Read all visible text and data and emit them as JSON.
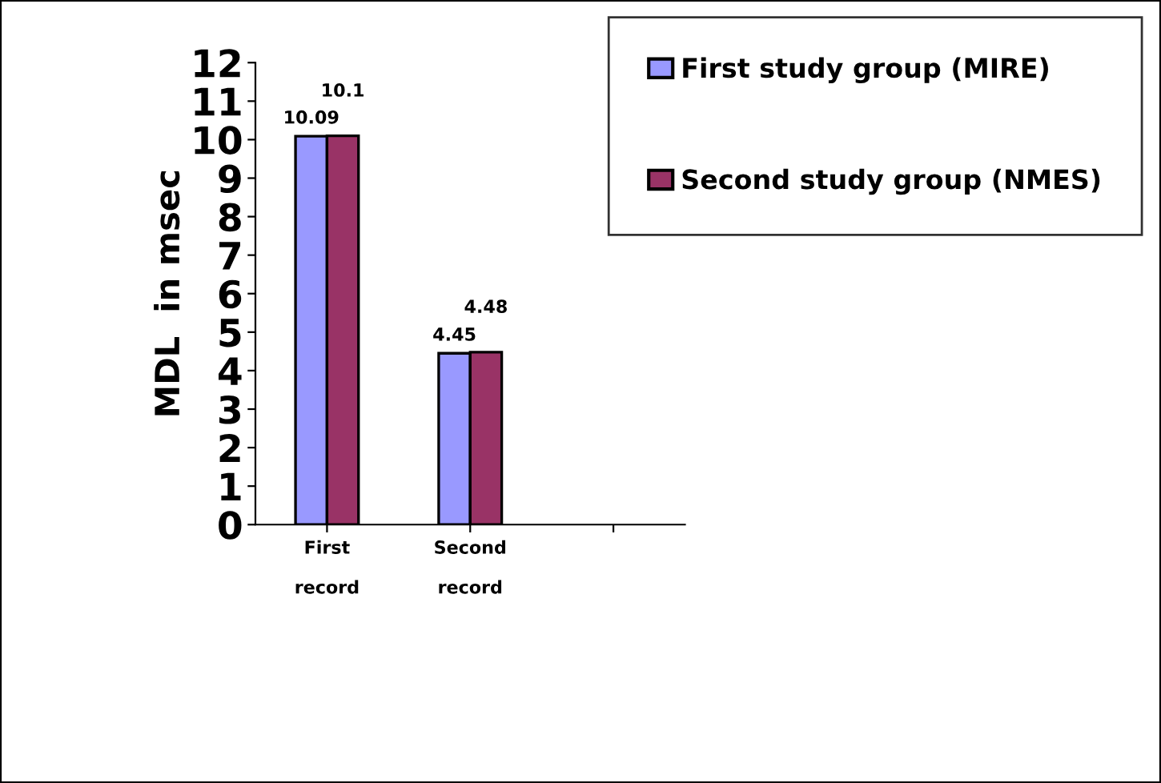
{
  "chart_data": {
    "type": "bar",
    "ylabel": "MDL  in msec",
    "categories": [
      "First\n\nrecord",
      "Second\n\nrecord",
      null
    ],
    "series": [
      {
        "name": "First study group (MIRE)",
        "color": "#9999ff",
        "values": [
          10.09,
          4.45,
          null
        ]
      },
      {
        "name": "Second study group (NMES)",
        "color": "#993366",
        "values": [
          10.1,
          4.48,
          null
        ]
      }
    ],
    "ylim": [
      0,
      12
    ],
    "yticks": [
      0,
      1,
      2,
      3,
      4,
      5,
      6,
      7,
      8,
      9,
      10,
      11,
      12
    ],
    "data_labels": true,
    "grid": false,
    "legend": "top right"
  }
}
